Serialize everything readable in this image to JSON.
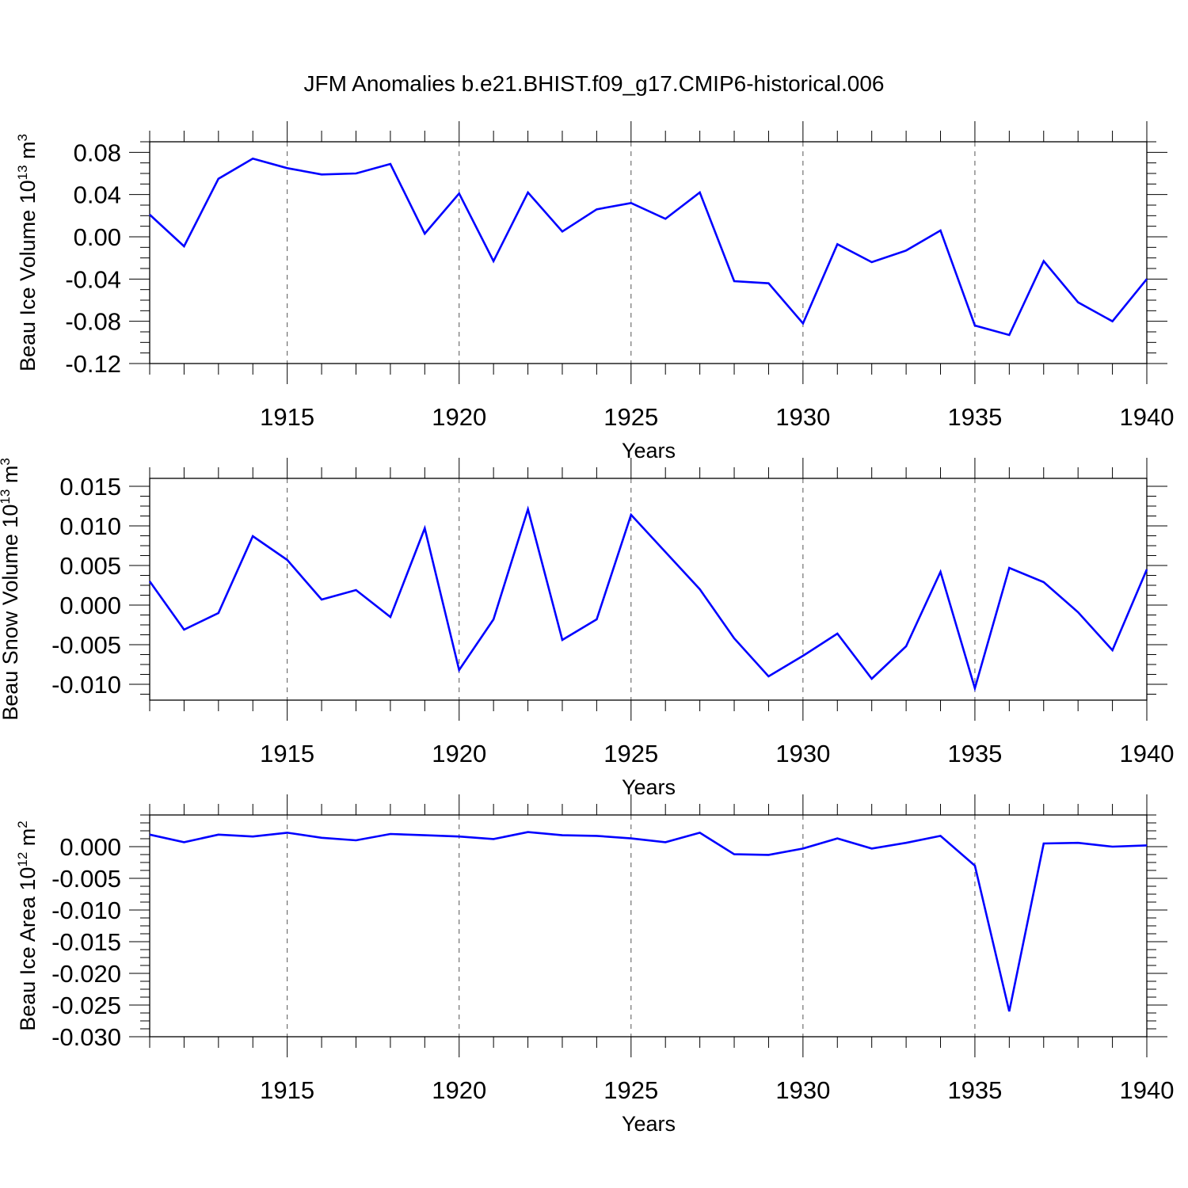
{
  "title": "JFM Anomalies b.e21.BHIST.f09_g17.CMIP6-historical.006",
  "colors": {
    "line": "#0000ff",
    "axis": "#000000",
    "grid": "#555555"
  },
  "chart_data": [
    {
      "type": "line",
      "ylabel": {
        "text": "Beau Ice Volume 10",
        "sup1": "13",
        "unit": " m",
        "sup2": "3"
      },
      "xlabel": "Years",
      "xlim": [
        1911,
        1940
      ],
      "ylim": [
        -0.12,
        0.09
      ],
      "yticks": [
        -0.12,
        -0.08,
        -0.04,
        0.0,
        0.04,
        0.08
      ],
      "ytick_labels": [
        "-0.12",
        "-0.08",
        "-0.04",
        "0.00",
        "0.04",
        "0.08"
      ],
      "xticks": [
        1915,
        1920,
        1925,
        1930,
        1935,
        1940
      ],
      "xtick_labels": [
        "1915",
        "1920",
        "1925",
        "1930",
        "1935",
        "1940"
      ],
      "grid": "vertical dashed at major x ticks",
      "series": [
        {
          "x": [
            1911,
            1912,
            1913,
            1914,
            1915,
            1916,
            1917,
            1918,
            1919,
            1920,
            1921,
            1922,
            1923,
            1924,
            1925,
            1926,
            1927,
            1928,
            1929,
            1930,
            1931,
            1932,
            1933,
            1934,
            1935,
            1936,
            1937,
            1938,
            1939,
            1940
          ],
          "values": [
            0.021,
            -0.009,
            0.055,
            0.074,
            0.065,
            0.059,
            0.06,
            0.069,
            0.003,
            0.041,
            -0.023,
            0.042,
            0.005,
            0.026,
            0.032,
            0.017,
            0.042,
            -0.042,
            -0.044,
            -0.082,
            -0.007,
            -0.024,
            -0.013,
            0.006,
            -0.084,
            -0.093,
            -0.023,
            -0.062,
            -0.08,
            -0.04
          ]
        }
      ]
    },
    {
      "type": "line",
      "ylabel": {
        "text": "Beau Snow Volume 10",
        "sup1": "13",
        "unit": " m",
        "sup2": "3"
      },
      "xlabel": "Years",
      "xlim": [
        1911,
        1940
      ],
      "ylim": [
        -0.012,
        0.016
      ],
      "yticks": [
        -0.01,
        -0.005,
        0.0,
        0.005,
        0.01,
        0.015
      ],
      "ytick_labels": [
        "-0.010",
        "-0.005",
        "0.000",
        "0.005",
        "0.010",
        "0.015"
      ],
      "xticks": [
        1915,
        1920,
        1925,
        1930,
        1935,
        1940
      ],
      "xtick_labels": [
        "1915",
        "1920",
        "1925",
        "1930",
        "1935",
        "1940"
      ],
      "grid": "vertical dashed at major x ticks",
      "series": [
        {
          "x": [
            1911,
            1912,
            1913,
            1914,
            1915,
            1916,
            1917,
            1918,
            1919,
            1920,
            1921,
            1922,
            1923,
            1924,
            1925,
            1926,
            1927,
            1928,
            1929,
            1930,
            1931,
            1932,
            1933,
            1934,
            1935,
            1936,
            1937,
            1938,
            1939,
            1940
          ],
          "values": [
            0.003,
            -0.0031,
            -0.001,
            0.0087,
            0.0057,
            0.0007,
            0.0019,
            -0.0015,
            0.0097,
            -0.0082,
            -0.0018,
            0.0121,
            -0.0044,
            -0.0018,
            0.0114,
            0.0067,
            0.002,
            -0.0042,
            -0.009,
            -0.0064,
            -0.0036,
            -0.0093,
            -0.0052,
            0.0042,
            -0.0105,
            0.0047,
            0.0029,
            -0.0009,
            -0.0057,
            0.0045
          ]
        }
      ]
    },
    {
      "type": "line",
      "ylabel": {
        "text": "Beau Ice Area 10",
        "sup1": "12",
        "unit": " m",
        "sup2": "2"
      },
      "xlabel": "Years",
      "xlim": [
        1911,
        1940
      ],
      "ylim": [
        -0.03,
        0.005
      ],
      "yticks": [
        -0.03,
        -0.025,
        -0.02,
        -0.015,
        -0.01,
        -0.005,
        0.0
      ],
      "ytick_labels": [
        "-0.030",
        "-0.025",
        "-0.020",
        "-0.015",
        "-0.010",
        "-0.005",
        "0.000"
      ],
      "xticks": [
        1915,
        1920,
        1925,
        1930,
        1935,
        1940
      ],
      "xtick_labels": [
        "1915",
        "1920",
        "1925",
        "1930",
        "1935",
        "1940"
      ],
      "grid": "vertical dashed at major x ticks",
      "series": [
        {
          "x": [
            1911,
            1912,
            1913,
            1914,
            1915,
            1916,
            1917,
            1918,
            1919,
            1920,
            1921,
            1922,
            1923,
            1924,
            1925,
            1926,
            1927,
            1928,
            1929,
            1930,
            1931,
            1932,
            1933,
            1934,
            1935,
            1936,
            1937,
            1938,
            1939,
            1940
          ],
          "values": [
            0.0019,
            0.0007,
            0.0019,
            0.0016,
            0.0022,
            0.0014,
            0.001,
            0.002,
            0.0018,
            0.0016,
            0.0012,
            0.0023,
            0.0018,
            0.0017,
            0.0013,
            0.0007,
            0.0022,
            -0.0012,
            -0.0013,
            -0.0003,
            0.0013,
            -0.0003,
            0.0006,
            0.0017,
            -0.003,
            -0.026,
            0.0005,
            0.0006,
            0.0,
            0.0002
          ]
        }
      ]
    }
  ]
}
